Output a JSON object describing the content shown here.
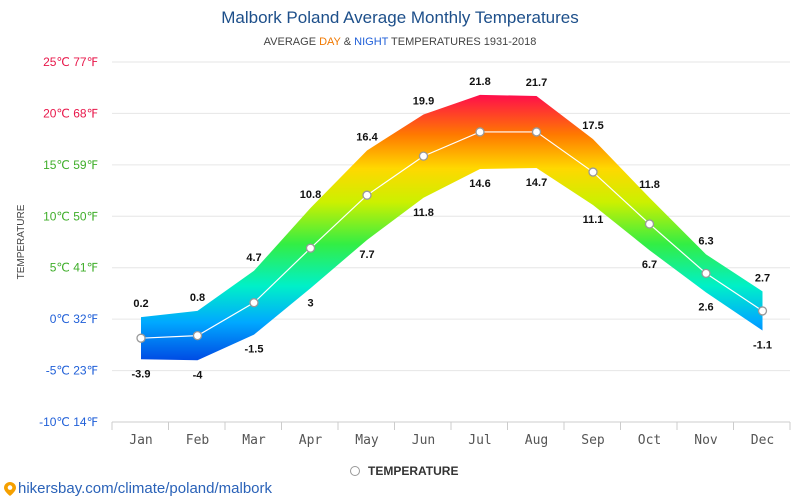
{
  "page": {
    "title": "Malbork Poland Average Monthly Temperatures",
    "subtitle_prefix": "AVERAGE ",
    "subtitle_day": "DAY",
    "subtitle_amp": " & ",
    "subtitle_night": "NIGHT",
    "subtitle_suffix": " TEMPERATURES 1931-2018",
    "source": "hikersbay.com/climate/poland/malbork",
    "legend": "TEMPERATURE"
  },
  "chart_data": {
    "type": "area",
    "title": "Malbork Poland Average Monthly Temperatures",
    "ylabel": "TEMPERATURE",
    "categories": [
      "Jan",
      "Feb",
      "Mar",
      "Apr",
      "May",
      "Jun",
      "Jul",
      "Aug",
      "Sep",
      "Oct",
      "Nov",
      "Dec"
    ],
    "series": [
      {
        "role": "day",
        "values": [
          0.2,
          0.8,
          4.7,
          10.8,
          16.4,
          19.9,
          21.8,
          21.7,
          17.5,
          11.8,
          6.3,
          2.7
        ]
      },
      {
        "role": "night",
        "values": [
          -3.9,
          -4,
          -1.5,
          3,
          7.7,
          11.8,
          14.6,
          14.7,
          11.1,
          6.7,
          2.6,
          -1.1
        ]
      },
      {
        "name": "TEMPERATURE",
        "values": [
          -1.85,
          -1.6,
          1.6,
          6.9,
          12.05,
          15.85,
          18.2,
          18.2,
          14.3,
          9.25,
          4.45,
          0.8
        ]
      }
    ],
    "yticks": [
      {
        "value": 25,
        "label": "25℃ 77℉",
        "color": "#e8174a"
      },
      {
        "value": 20,
        "label": "20℃ 68℉",
        "color": "#e8174a"
      },
      {
        "value": 15,
        "label": "15℃ 59℉",
        "color": "#3fae2a"
      },
      {
        "value": 10,
        "label": "10℃ 50℉",
        "color": "#3fae2a"
      },
      {
        "value": 5,
        "label": "5℃ 41℉",
        "color": "#3fae2a"
      },
      {
        "value": 0,
        "label": "0℃ 32℉",
        "color": "#1f5fd8"
      },
      {
        "value": -5,
        "label": "-5℃ 23℉",
        "color": "#1f5fd8"
      },
      {
        "value": -10,
        "label": "-10℃ 14℉",
        "color": "#1f5fd8"
      }
    ],
    "ylim": [
      -10,
      25
    ],
    "grid": true,
    "legend_position": "bottom-center"
  }
}
